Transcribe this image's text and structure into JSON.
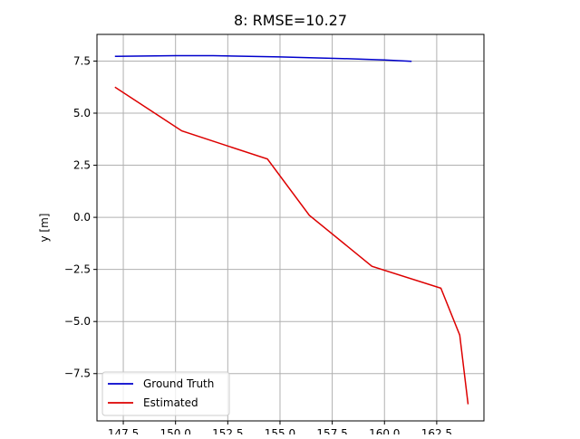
{
  "chart_data": {
    "type": "line",
    "title": "8: RMSE=10.27",
    "xlabel": "",
    "ylabel": "y [m]",
    "xlim": [
      146.24,
      164.76
    ],
    "ylim": [
      -9.77,
      8.78
    ],
    "x_ticks": [
      147.5,
      150.0,
      152.5,
      155.0,
      157.5,
      160.0,
      162.5
    ],
    "x_tick_labels": [
      "147.5",
      "150.0",
      "152.5",
      "155.0",
      "157.5",
      "160.0",
      "162.5"
    ],
    "y_ticks": [
      -7.5,
      -5.0,
      -2.5,
      0.0,
      2.5,
      5.0,
      7.5
    ],
    "y_tick_labels": [
      "−7.5",
      "−5.0",
      "−2.5",
      "0.0",
      "2.5",
      "5.0",
      "7.5"
    ],
    "grid": true,
    "legend_position": "lower-left",
    "series": [
      {
        "name": "Ground Truth",
        "color": "#0000cc",
        "x": [
          147.1,
          150.0,
          151.8,
          155.0,
          158.0,
          160.0,
          161.3
        ],
        "y": [
          7.73,
          7.76,
          7.76,
          7.7,
          7.62,
          7.55,
          7.49
        ]
      },
      {
        "name": "Estimated",
        "color": "#dd0000",
        "x": [
          147.1,
          150.3,
          154.4,
          156.4,
          159.4,
          162.7,
          163.6,
          164.0
        ],
        "y": [
          6.25,
          4.15,
          2.8,
          0.1,
          -2.35,
          -3.4,
          -5.65,
          -8.97
        ]
      }
    ]
  }
}
